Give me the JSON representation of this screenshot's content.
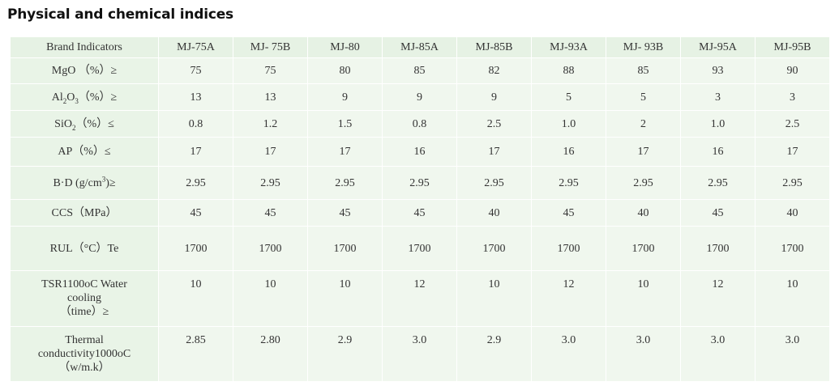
{
  "page": {
    "title": "Physical and chemical indices"
  },
  "table": {
    "header": {
      "label": "Brand Indicators",
      "columns": [
        "MJ-75A",
        "MJ- 75B",
        "MJ-80",
        "MJ-85A",
        "MJ-85B",
        "MJ-93A",
        "MJ- 93B",
        "MJ-95A",
        "MJ-95B"
      ]
    },
    "rows": [
      {
        "label_main": "MgO （%）≥",
        "label_sub": "",
        "label_rest": "",
        "values": [
          "75",
          "75",
          "80",
          "85",
          "82",
          "88",
          "85",
          "93",
          "90"
        ]
      },
      {
        "label_main": "Al",
        "label_sub": "2",
        "label_mid": "O",
        "label_sub2": "3",
        "label_rest": "（%）≥",
        "values": [
          "13",
          "13",
          "9",
          "9",
          "9",
          "5",
          "5",
          "3",
          "3"
        ]
      },
      {
        "label_main": "SiO",
        "label_sub": "2",
        "label_rest": "（%）≤",
        "values": [
          "0.8",
          "1.2",
          "1.5",
          "0.8",
          "2.5",
          "1.0",
          "2",
          "1.0",
          "2.5"
        ]
      },
      {
        "label_main": "AP（%）≤",
        "values": [
          "17",
          "17",
          "17",
          "16",
          "17",
          "16",
          "17",
          "16",
          "17"
        ]
      },
      {
        "label_main": "B·D (g/cm",
        "label_sup": "3",
        "label_rest": ")≥",
        "values": [
          "2.95",
          "2.95",
          "2.95",
          "2.95",
          "2.95",
          "2.95",
          "2.95",
          "2.95",
          "2.95"
        ]
      },
      {
        "label_main": "CCS（MPa）",
        "values": [
          "45",
          "45",
          "45",
          "45",
          "40",
          "45",
          "40",
          "45",
          "40"
        ]
      },
      {
        "label_main": "RUL（°C）Te",
        "values": [
          "1700",
          "1700",
          "1700",
          "1700",
          "1700",
          "1700",
          "1700",
          "1700",
          "1700"
        ]
      },
      {
        "label_line1": "TSR1100oC Water",
        "label_line2": "cooling",
        "label_line3": "（time）≥",
        "values": [
          "10",
          "10",
          "10",
          "12",
          "10",
          "12",
          "10",
          "12",
          "10"
        ]
      },
      {
        "label_line1": "Thermal",
        "label_line2": "conductivity1000oC",
        "label_line3": "（w/m.k）",
        "values": [
          "2.85",
          "2.80",
          "2.9",
          "3.0",
          "2.9",
          "3.0",
          "3.0",
          "3.0",
          "3.0"
        ]
      }
    ]
  }
}
